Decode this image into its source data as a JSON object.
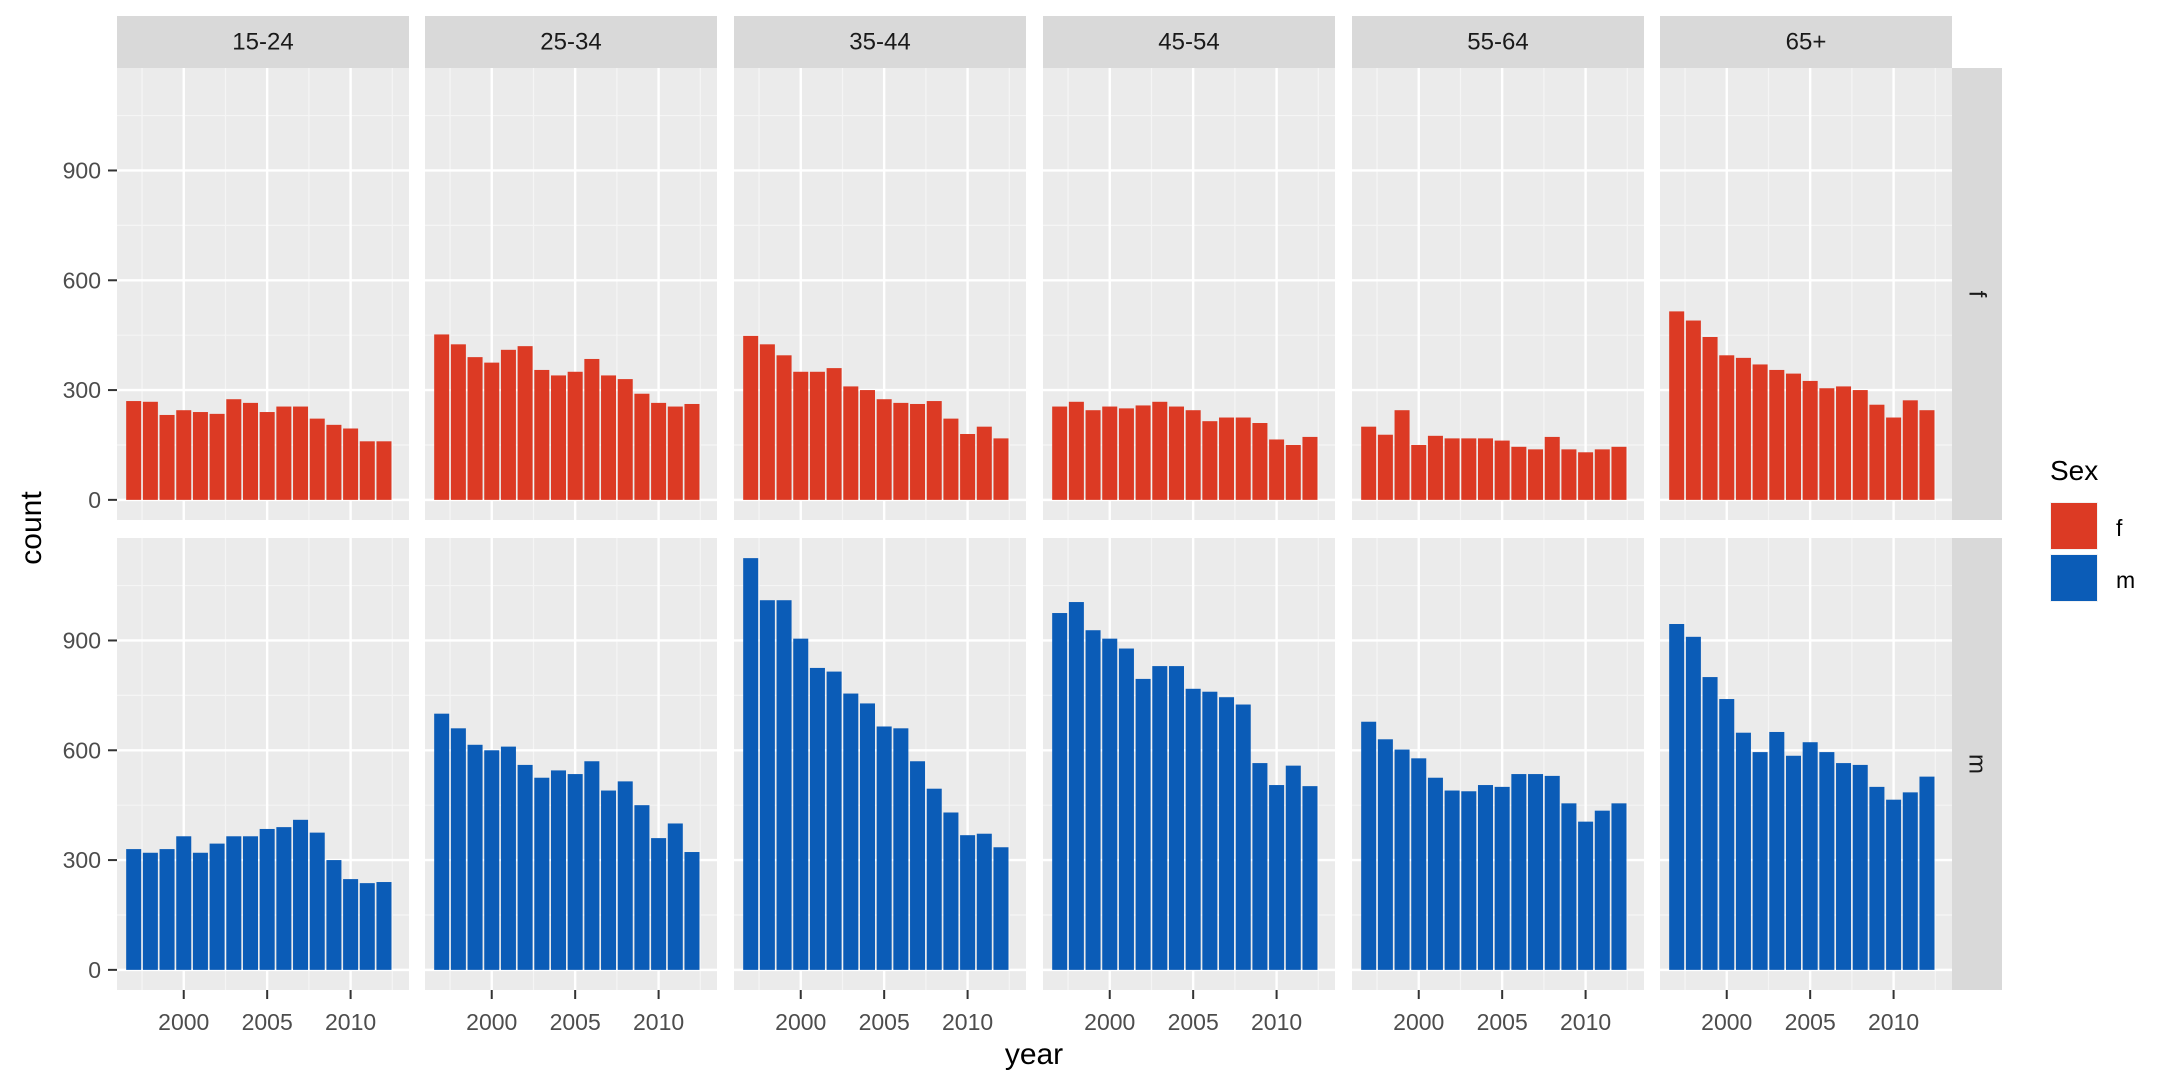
{
  "chart_data": {
    "type": "bar",
    "facet_columns_label": "",
    "xlabel": "year",
    "ylabel": "count",
    "xlim": [
      1996,
      2013.5
    ],
    "ylim": [
      -55,
      1180
    ],
    "x_ticks": [
      2000,
      2005,
      2010
    ],
    "y_ticks": [
      0,
      300,
      600,
      900
    ],
    "grid": true,
    "legend_position": "right",
    "legend_title": "Sex",
    "years": [
      1997,
      1998,
      1999,
      2000,
      2001,
      2002,
      2003,
      2004,
      2005,
      2006,
      2007,
      2008,
      2009,
      2010,
      2011,
      2012
    ],
    "age_groups": [
      "15-24",
      "25-34",
      "35-44",
      "45-54",
      "55-64",
      "65+"
    ],
    "sexes": [
      {
        "key": "f",
        "label": "f",
        "color": "#DC3A24"
      },
      {
        "key": "m",
        "label": "m",
        "color": "#0B5CB7"
      }
    ],
    "values": {
      "f": {
        "15-24": [
          270,
          268,
          232,
          245,
          240,
          235,
          275,
          265,
          240,
          255,
          255,
          222,
          205,
          195,
          160,
          160
        ],
        "25-34": [
          452,
          425,
          390,
          375,
          410,
          420,
          355,
          340,
          350,
          385,
          340,
          330,
          290,
          265,
          255,
          262
        ],
        "35-44": [
          448,
          425,
          395,
          350,
          350,
          360,
          310,
          300,
          275,
          265,
          262,
          270,
          222,
          180,
          200,
          168
        ],
        "45-54": [
          255,
          268,
          245,
          255,
          250,
          258,
          268,
          255,
          245,
          215,
          225,
          225,
          210,
          165,
          150,
          172
        ],
        "55-64": [
          200,
          178,
          245,
          150,
          175,
          168,
          168,
          168,
          162,
          145,
          138,
          172,
          138,
          130,
          138,
          145
        ],
        "65+": [
          515,
          490,
          445,
          395,
          388,
          370,
          355,
          345,
          325,
          305,
          310,
          300,
          260,
          225,
          272,
          245
        ]
      },
      "m": {
        "15-24": [
          330,
          320,
          330,
          365,
          320,
          345,
          365,
          365,
          385,
          390,
          410,
          375,
          300,
          248,
          237,
          240
        ],
        "25-34": [
          700,
          660,
          615,
          600,
          610,
          560,
          525,
          545,
          535,
          570,
          490,
          515,
          450,
          360,
          400,
          322
        ],
        "35-44": [
          1125,
          1010,
          1010,
          905,
          825,
          815,
          755,
          728,
          665,
          660,
          570,
          495,
          430,
          368,
          372,
          335
        ],
        "45-54": [
          975,
          1005,
          928,
          905,
          878,
          795,
          830,
          830,
          768,
          760,
          745,
          725,
          565,
          505,
          558,
          502
        ],
        "55-64": [
          678,
          630,
          602,
          578,
          525,
          490,
          488,
          505,
          500,
          535,
          535,
          530,
          455,
          405,
          435,
          455
        ],
        "65+": [
          945,
          910,
          800,
          740,
          648,
          595,
          650,
          585,
          622,
          595,
          565,
          560,
          500,
          465,
          485,
          528
        ]
      }
    }
  }
}
